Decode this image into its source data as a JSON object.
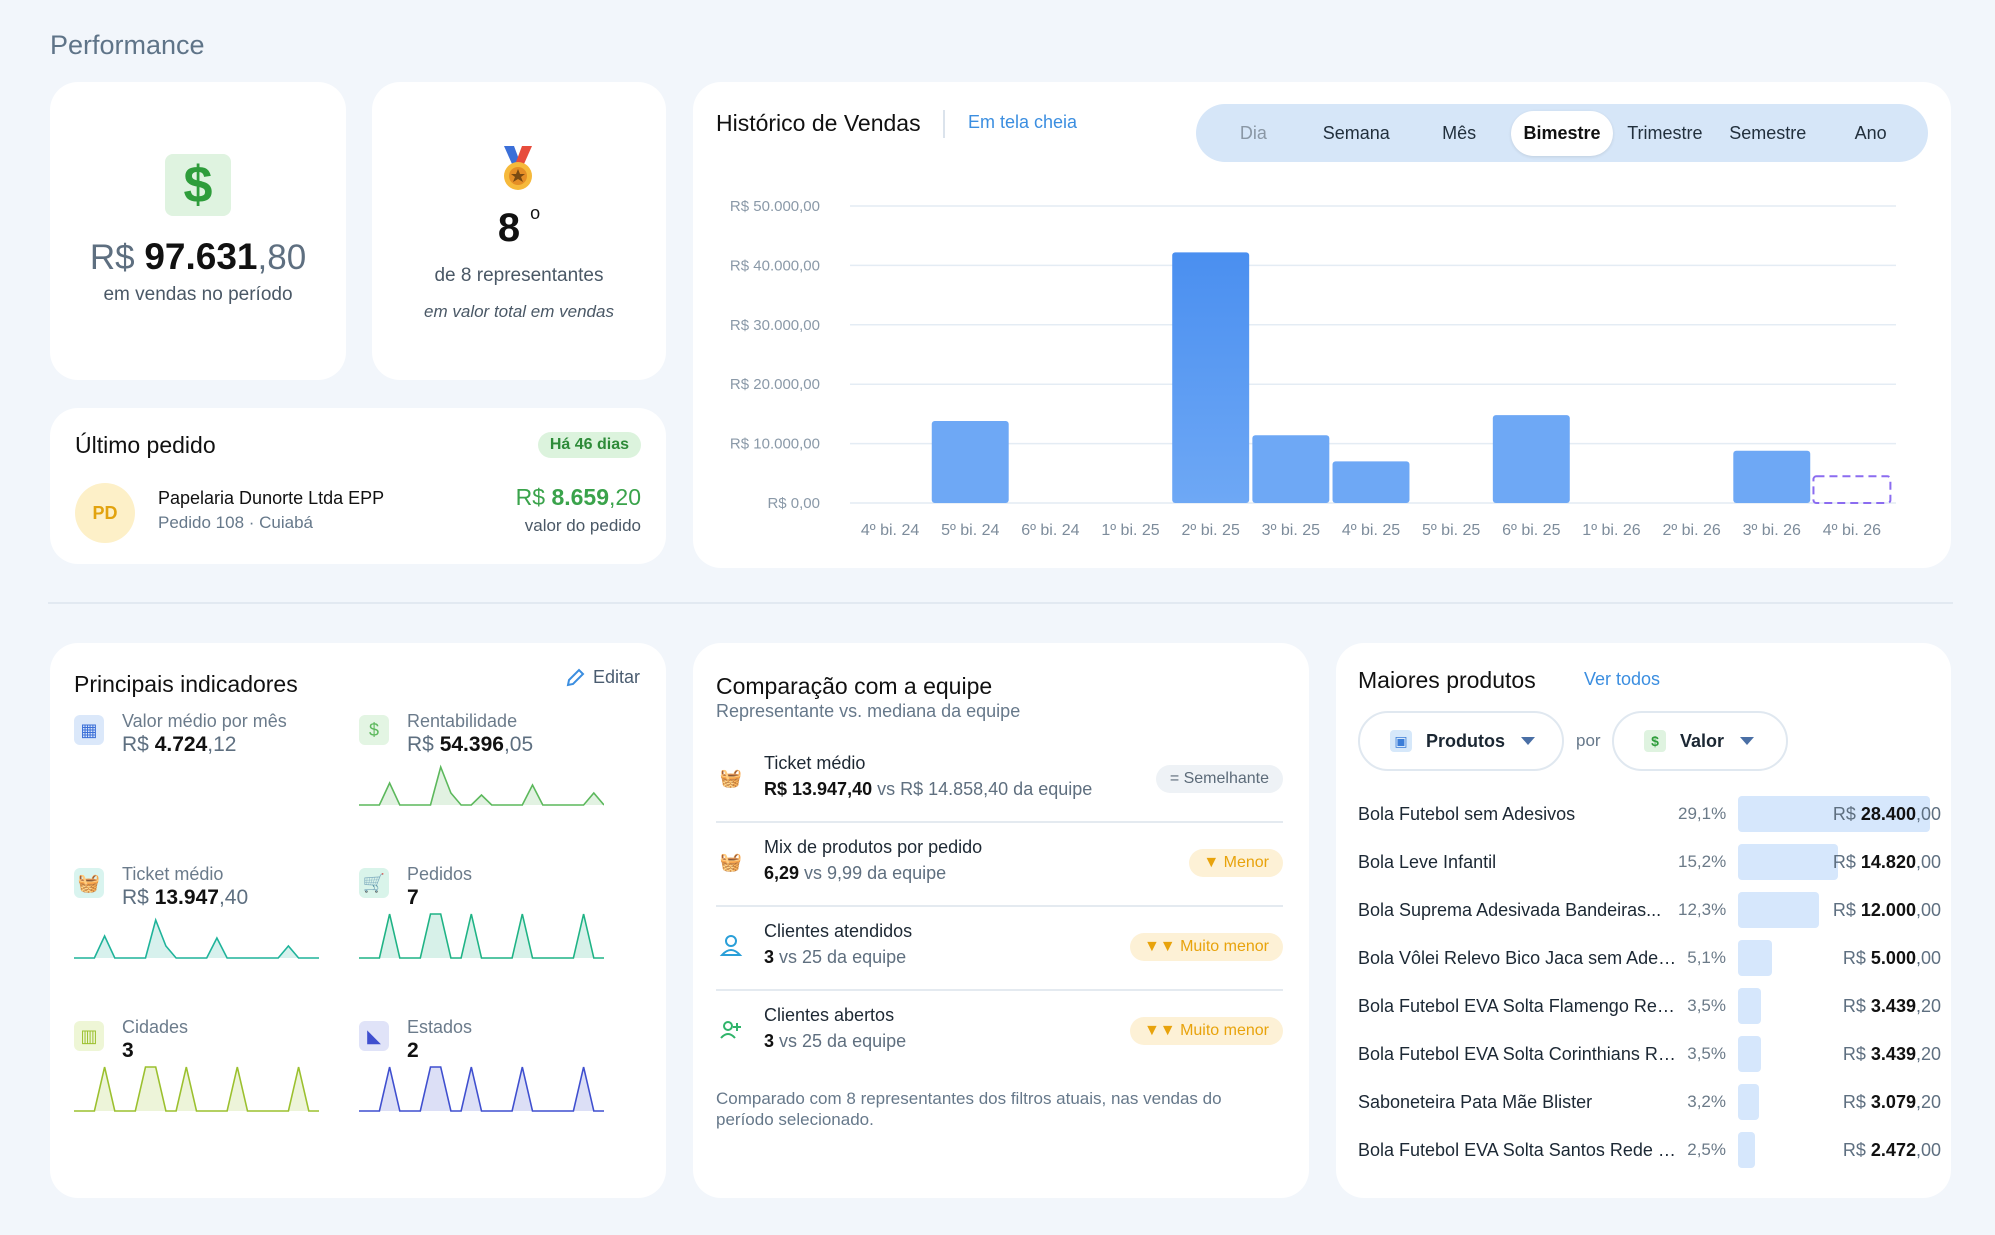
{
  "page": {
    "title": "Performance"
  },
  "sales_card": {
    "currency": "R$",
    "integer": "97.631",
    "decimal": ",80",
    "caption": "em vendas no período"
  },
  "rank_card": {
    "rank": "8",
    "suffix": "o",
    "of_text": "de 8 representantes",
    "caption": "em valor total em vendas"
  },
  "last_order": {
    "title": "Último pedido",
    "badge": "Há 46 dias",
    "avatar": "PD",
    "client": "Papelaria Dunorte Ltda EPP",
    "order_info": "Pedido 108 · Cuiabá",
    "value_currency": "R$",
    "value_integer": "8.659",
    "value_decimal": ",20",
    "value_caption": "valor do pedido"
  },
  "history": {
    "title": "Histórico de Vendas",
    "fullscreen_link": "Em tela cheia",
    "tabs": [
      "Dia",
      "Semana",
      "Mês",
      "Bimestre",
      "Trimestre",
      "Semestre",
      "Ano"
    ],
    "active_tab": "Bimestre"
  },
  "chart_data": {
    "type": "bar",
    "categories": [
      "4º bi. 24",
      "5º bi. 24",
      "6º bi. 24",
      "1º bi. 25",
      "2º bi. 25",
      "3º bi. 25",
      "4º bi. 25",
      "5º bi. 25",
      "6º bi. 25",
      "1º bi. 26",
      "2º bi. 26",
      "3º bi. 26",
      "4º bi. 26"
    ],
    "values": [
      0,
      13800,
      0,
      0,
      42200,
      11400,
      7000,
      0,
      14800,
      0,
      0,
      8800,
      4500
    ],
    "projected_last": true,
    "ylim": [
      0,
      50000
    ],
    "yticks": [
      "R$ 0,00",
      "R$ 10.000,00",
      "R$ 20.000,00",
      "R$ 30.000,00",
      "R$ 40.000,00",
      "R$ 50.000,00"
    ],
    "grid": true,
    "colors": {
      "bar": "#6ea8f5",
      "bar_dark": "#4a8ff0",
      "projected": "#8b6cf0"
    }
  },
  "indicators": {
    "title": "Principais indicadores",
    "edit": "Editar",
    "items": [
      {
        "label": "Valor médio por mês",
        "currency": "R$",
        "integer": "4.724",
        "decimal": ",12",
        "icon": "calendar-icon"
      },
      {
        "label": "Rentabilidade",
        "currency": "R$",
        "integer": "54.396",
        "decimal": ",05",
        "icon": "money-stack-icon",
        "color": "#5cb85c"
      },
      {
        "label": "Ticket médio",
        "currency": "R$",
        "integer": "13.947",
        "decimal": ",40",
        "icon": "basket-icon",
        "color": "#1fb39a"
      },
      {
        "label": "Pedidos",
        "currency": "",
        "integer": "7",
        "decimal": "",
        "icon": "cart-icon",
        "color": "#1fb385"
      },
      {
        "label": "Cidades",
        "currency": "",
        "integer": "3",
        "decimal": "",
        "icon": "building-icon",
        "color": "#9bc02e"
      },
      {
        "label": "Estados",
        "currency": "",
        "integer": "2",
        "decimal": "",
        "icon": "map-icon",
        "color": "#3f4fcf"
      }
    ]
  },
  "comparison": {
    "title": "Comparação com a equipe",
    "subtitle": "Representante vs. mediana da equipe",
    "rows": [
      {
        "label": "Ticket médio",
        "value": "R$ 13.947,40",
        "rest": " vs R$ 14.858,40 da equipe",
        "pill": "= Semelhante",
        "pill_style": "gray"
      },
      {
        "label": "Mix de produtos por pedido",
        "value": "6,29",
        "rest": " vs 9,99 da equipe",
        "pill": "▼ Menor",
        "pill_style": "yellow"
      },
      {
        "label": "Clientes atendidos",
        "value": "3",
        "rest": " vs 25 da equipe",
        "pill": "▼▼ Muito menor",
        "pill_style": "yellow"
      },
      {
        "label": "Clientes abertos",
        "value": "3",
        "rest": " vs 25 da equipe",
        "pill": "▼▼ Muito menor",
        "pill_style": "yellow"
      }
    ],
    "footnote": "Comparado com 8 representantes dos filtros atuais, nas vendas do período selecionado."
  },
  "products": {
    "title": "Maiores produtos",
    "see_all": "Ver todos",
    "select_dimension": "Produtos",
    "by": "por",
    "select_metric": "Valor",
    "items": [
      {
        "name": "Bola Futebol sem Adesivos",
        "pct": "29,1%",
        "share": 1.0,
        "currency": "R$",
        "integer": "28.400",
        "decimal": ",00"
      },
      {
        "name": "Bola Leve Infantil",
        "pct": "15,2%",
        "share": 0.52,
        "currency": "R$",
        "integer": "14.820",
        "decimal": ",00"
      },
      {
        "name": "Bola Suprema Adesivada Bandeiras...",
        "pct": "12,3%",
        "share": 0.42,
        "currency": "R$",
        "integer": "12.000",
        "decimal": ",00"
      },
      {
        "name": "Bola Vôlei Relevo Bico Jaca sem Ades...",
        "pct": "5,1%",
        "share": 0.176,
        "currency": "R$",
        "integer": "5.000",
        "decimal": ",00"
      },
      {
        "name": "Bola Futebol EVA Solta Flamengo Red...",
        "pct": "3,5%",
        "share": 0.121,
        "currency": "R$",
        "integer": "3.439",
        "decimal": ",20"
      },
      {
        "name": "Bola Futebol EVA Solta Corinthians Re...",
        "pct": "3,5%",
        "share": 0.121,
        "currency": "R$",
        "integer": "3.439",
        "decimal": ",20"
      },
      {
        "name": "Saboneteira Pata Mãe Blister",
        "pct": "3,2%",
        "share": 0.108,
        "currency": "R$",
        "integer": "3.079",
        "decimal": ",20"
      },
      {
        "name": "Bola Futebol EVA Solta Santos Rede c...",
        "pct": "2,5%",
        "share": 0.087,
        "currency": "R$",
        "integer": "2.472",
        "decimal": ",00"
      }
    ]
  }
}
